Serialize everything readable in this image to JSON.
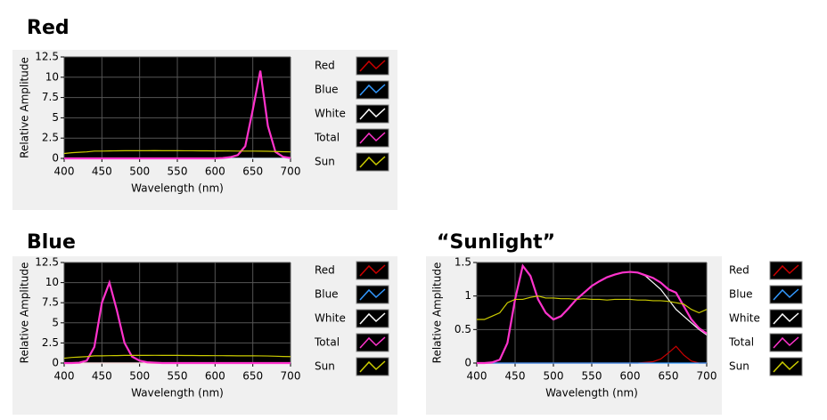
{
  "chart_data": [
    {
      "type": "line",
      "title": "Red",
      "x_label": "Wavelength (nm)",
      "y_label": "Relative Amplitude",
      "x": [
        400,
        410,
        420,
        430,
        440,
        450,
        460,
        470,
        480,
        490,
        500,
        510,
        520,
        530,
        540,
        550,
        560,
        570,
        580,
        590,
        600,
        610,
        620,
        630,
        640,
        650,
        660,
        670,
        680,
        690,
        700
      ],
      "series": [
        {
          "name": "Red",
          "color": "#cc0000",
          "values": [
            0,
            0,
            0,
            0,
            0,
            0,
            0,
            0,
            0,
            0,
            0,
            0,
            0,
            0,
            0,
            0,
            0,
            0,
            0,
            0,
            0,
            0.05,
            0.15,
            0.4,
            1.5,
            6,
            10.8,
            4,
            0.8,
            0.2,
            0.05
          ]
        },
        {
          "name": "Blue",
          "color": "#3399ff",
          "values": [
            0,
            0,
            0,
            0,
            0,
            0,
            0,
            0,
            0,
            0,
            0,
            0,
            0,
            0,
            0,
            0,
            0,
            0,
            0,
            0,
            0,
            0,
            0,
            0,
            0,
            0,
            0,
            0,
            0,
            0,
            0
          ]
        },
        {
          "name": "White",
          "color": "#ffffff",
          "values": [
            0,
            0,
            0,
            0,
            0,
            0,
            0,
            0,
            0,
            0,
            0,
            0,
            0,
            0,
            0,
            0,
            0,
            0,
            0,
            0,
            0,
            0,
            0,
            0,
            0,
            0,
            0,
            0,
            0,
            0,
            0
          ]
        },
        {
          "name": "Total",
          "color": "#ff33cc",
          "values": [
            0,
            0,
            0,
            0,
            0,
            0,
            0,
            0,
            0,
            0,
            0,
            0,
            0,
            0,
            0,
            0,
            0,
            0,
            0,
            0,
            0,
            0.05,
            0.15,
            0.4,
            1.5,
            6,
            10.8,
            4,
            0.8,
            0.2,
            0.05
          ]
        },
        {
          "name": "Sun",
          "color": "#cccc00",
          "values": [
            0.6,
            0.7,
            0.75,
            0.8,
            0.9,
            0.9,
            0.92,
            0.93,
            0.95,
            0.95,
            0.95,
            0.95,
            0.96,
            0.95,
            0.95,
            0.95,
            0.94,
            0.94,
            0.93,
            0.93,
            0.92,
            0.92,
            0.91,
            0.9,
            0.9,
            0.9,
            0.89,
            0.88,
            0.85,
            0.82,
            0.8
          ]
        }
      ],
      "xlim": [
        400,
        700
      ],
      "ylim": [
        0,
        12.5
      ],
      "xticks": [
        400,
        450,
        500,
        550,
        600,
        650,
        700
      ],
      "yticks": [
        0,
        2.5,
        5,
        7.5,
        10,
        12.5
      ],
      "grid": true
    },
    {
      "type": "line",
      "title": "Blue",
      "x_label": "Wavelength (nm)",
      "y_label": "Relative Amplitude",
      "x": [
        400,
        410,
        420,
        430,
        440,
        450,
        460,
        470,
        480,
        490,
        500,
        510,
        520,
        530,
        540,
        550,
        560,
        570,
        580,
        590,
        600,
        610,
        620,
        630,
        640,
        650,
        660,
        670,
        680,
        690,
        700
      ],
      "series": [
        {
          "name": "Red",
          "color": "#cc0000",
          "values": [
            0,
            0,
            0,
            0,
            0,
            0,
            0,
            0,
            0,
            0,
            0,
            0,
            0,
            0,
            0,
            0,
            0,
            0,
            0,
            0,
            0,
            0,
            0,
            0,
            0,
            0,
            0,
            0,
            0,
            0,
            0
          ]
        },
        {
          "name": "Blue",
          "color": "#3399ff",
          "values": [
            0,
            0,
            0.05,
            0.3,
            2,
            7.5,
            10,
            6.5,
            2.5,
            0.8,
            0.3,
            0.1,
            0.05,
            0,
            0,
            0,
            0,
            0,
            0,
            0,
            0,
            0,
            0,
            0,
            0,
            0,
            0,
            0,
            0,
            0,
            0
          ]
        },
        {
          "name": "White",
          "color": "#ffffff",
          "values": [
            0,
            0,
            0,
            0,
            0,
            0,
            0,
            0,
            0,
            0,
            0,
            0,
            0,
            0,
            0,
            0,
            0,
            0,
            0,
            0,
            0,
            0,
            0,
            0,
            0,
            0,
            0,
            0,
            0,
            0,
            0
          ]
        },
        {
          "name": "Total",
          "color": "#ff33cc",
          "values": [
            0,
            0,
            0.05,
            0.3,
            2,
            7.5,
            10,
            6.5,
            2.5,
            0.8,
            0.3,
            0.1,
            0.05,
            0,
            0,
            0,
            0,
            0,
            0,
            0,
            0,
            0,
            0,
            0,
            0,
            0,
            0,
            0,
            0,
            0,
            0
          ]
        },
        {
          "name": "Sun",
          "color": "#cccc00",
          "values": [
            0.6,
            0.7,
            0.75,
            0.8,
            0.9,
            0.9,
            0.92,
            0.93,
            0.95,
            0.95,
            0.95,
            0.95,
            0.96,
            0.95,
            0.95,
            0.95,
            0.94,
            0.94,
            0.93,
            0.93,
            0.92,
            0.92,
            0.91,
            0.9,
            0.9,
            0.9,
            0.89,
            0.88,
            0.85,
            0.82,
            0.8
          ]
        }
      ],
      "xlim": [
        400,
        700
      ],
      "ylim": [
        0,
        12.5
      ],
      "xticks": [
        400,
        450,
        500,
        550,
        600,
        650,
        700
      ],
      "yticks": [
        0,
        2.5,
        5,
        7.5,
        10,
        12.5
      ],
      "grid": true
    },
    {
      "type": "line",
      "title": "“Sunlight”",
      "x_label": "Wavelength (nm)",
      "y_label": "Relative Amplitude",
      "x": [
        400,
        410,
        420,
        430,
        440,
        450,
        460,
        470,
        480,
        490,
        500,
        510,
        520,
        530,
        540,
        550,
        560,
        570,
        580,
        590,
        600,
        610,
        620,
        630,
        640,
        650,
        660,
        670,
        680,
        690,
        700
      ],
      "series": [
        {
          "name": "Red",
          "color": "#cc0000",
          "values": [
            0,
            0,
            0,
            0,
            0,
            0,
            0,
            0,
            0,
            0,
            0,
            0,
            0,
            0,
            0,
            0,
            0,
            0,
            0,
            0,
            0,
            0,
            0.01,
            0.02,
            0.06,
            0.15,
            0.25,
            0.12,
            0.03,
            0,
            0
          ]
        },
        {
          "name": "Blue",
          "color": "#3399ff",
          "values": [
            0,
            0,
            0,
            0,
            0,
            0,
            0,
            0,
            0,
            0,
            0,
            0,
            0,
            0,
            0,
            0,
            0,
            0,
            0,
            0,
            0,
            0,
            0,
            0,
            0,
            0,
            0,
            0,
            0,
            0,
            0
          ]
        },
        {
          "name": "White",
          "color": "#ffffff",
          "values": [
            0,
            0,
            0.01,
            0.05,
            0.3,
            0.95,
            1.45,
            1.3,
            0.95,
            0.75,
            0.65,
            0.7,
            0.82,
            0.95,
            1.05,
            1.15,
            1.22,
            1.28,
            1.32,
            1.35,
            1.36,
            1.35,
            1.3,
            1.2,
            1.1,
            0.95,
            0.8,
            0.7,
            0.6,
            0.5,
            0.42
          ]
        },
        {
          "name": "Total",
          "color": "#ff33cc",
          "values": [
            0,
            0,
            0.01,
            0.05,
            0.3,
            0.95,
            1.45,
            1.3,
            0.95,
            0.75,
            0.65,
            0.7,
            0.82,
            0.95,
            1.05,
            1.15,
            1.22,
            1.28,
            1.32,
            1.35,
            1.36,
            1.35,
            1.31,
            1.27,
            1.2,
            1.1,
            1.05,
            0.85,
            0.65,
            0.52,
            0.44
          ]
        },
        {
          "name": "Sun",
          "color": "#cccc00",
          "values": [
            0.65,
            0.65,
            0.7,
            0.75,
            0.9,
            0.95,
            0.95,
            0.98,
            1,
            0.97,
            0.97,
            0.96,
            0.96,
            0.95,
            0.96,
            0.95,
            0.95,
            0.94,
            0.95,
            0.95,
            0.95,
            0.94,
            0.94,
            0.93,
            0.93,
            0.92,
            0.9,
            0.88,
            0.8,
            0.75,
            0.8
          ]
        }
      ],
      "xlim": [
        400,
        700
      ],
      "ylim": [
        0,
        1.5
      ],
      "xticks": [
        400,
        450,
        500,
        550,
        600,
        650,
        700
      ],
      "yticks": [
        0,
        0.5,
        1,
        1.5
      ],
      "grid": true
    }
  ]
}
